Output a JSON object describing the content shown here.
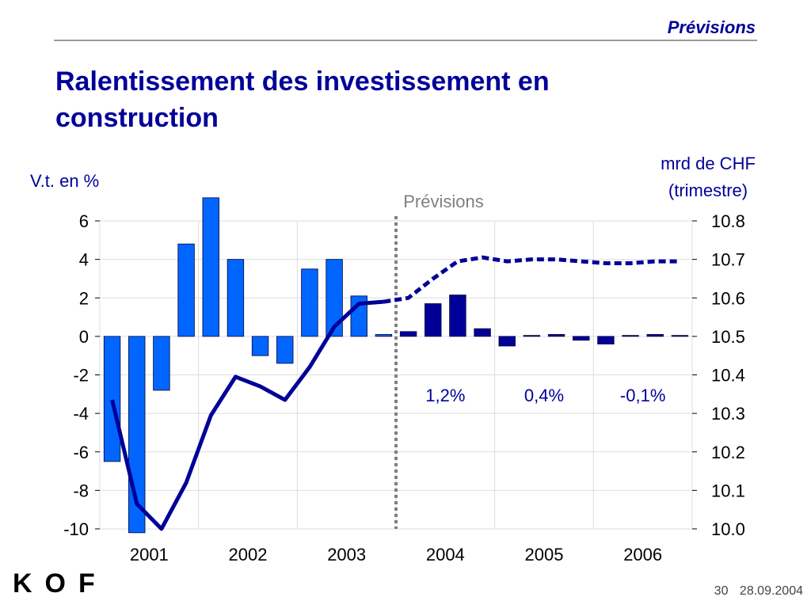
{
  "header": {
    "section": "Prévisions",
    "title": "Ralentissement des investissement en construction"
  },
  "footer": {
    "page_number": "30",
    "date": "28.09.2004",
    "logo_text": "KOF"
  },
  "colors": {
    "accent": "#000099",
    "bar_history": "#0066FF",
    "bar_forecast": "#000099",
    "line": "#000099",
    "forecast_divider": "#808080"
  },
  "chart_data": {
    "type": "bar",
    "left_axis_label": "V.t. en %",
    "right_axis_label_line1": "mrd de CHF",
    "right_axis_label_line2": "(trimestre)",
    "forecast_label": "Prévisions",
    "years": [
      "2001",
      "2002",
      "2003",
      "2004",
      "2005",
      "2006"
    ],
    "left_ylim": [
      -10,
      6
    ],
    "left_ticks": [
      "6",
      "4",
      "2",
      "0",
      "-2",
      "-4",
      "-6",
      "-8",
      "-10"
    ],
    "right_ylim": [
      10.0,
      10.8
    ],
    "right_ticks": [
      "10.8",
      "10.7",
      "10.6",
      "10.5",
      "10.4",
      "10.3",
      "10.2",
      "10.1",
      "10.0"
    ],
    "quarters": 24,
    "forecast_start_index": 12,
    "series": [
      {
        "kind": "bar",
        "values": [
          -6.5,
          -10.2,
          -2.8,
          4.8,
          7.2,
          4.0,
          -1.0,
          -1.4,
          3.5,
          4.0,
          2.1,
          0.1,
          0.25,
          1.7,
          2.15,
          0.4,
          -0.5,
          0.05,
          0.1,
          -0.2,
          -0.4,
          0.05,
          0.1,
          0.05
        ]
      },
      {
        "kind": "line",
        "values": [
          10.335,
          10.065,
          10.0,
          10.12,
          10.295,
          10.395,
          10.37,
          10.335,
          10.42,
          10.525,
          10.585,
          10.59,
          10.6,
          10.65,
          10.695,
          10.705,
          10.695,
          10.7,
          10.7,
          10.695,
          10.69,
          10.69,
          10.695,
          10.695
        ]
      }
    ],
    "annotations": [
      "1,2%",
      "0,4%",
      "-0,1%"
    ],
    "grid": true
  }
}
